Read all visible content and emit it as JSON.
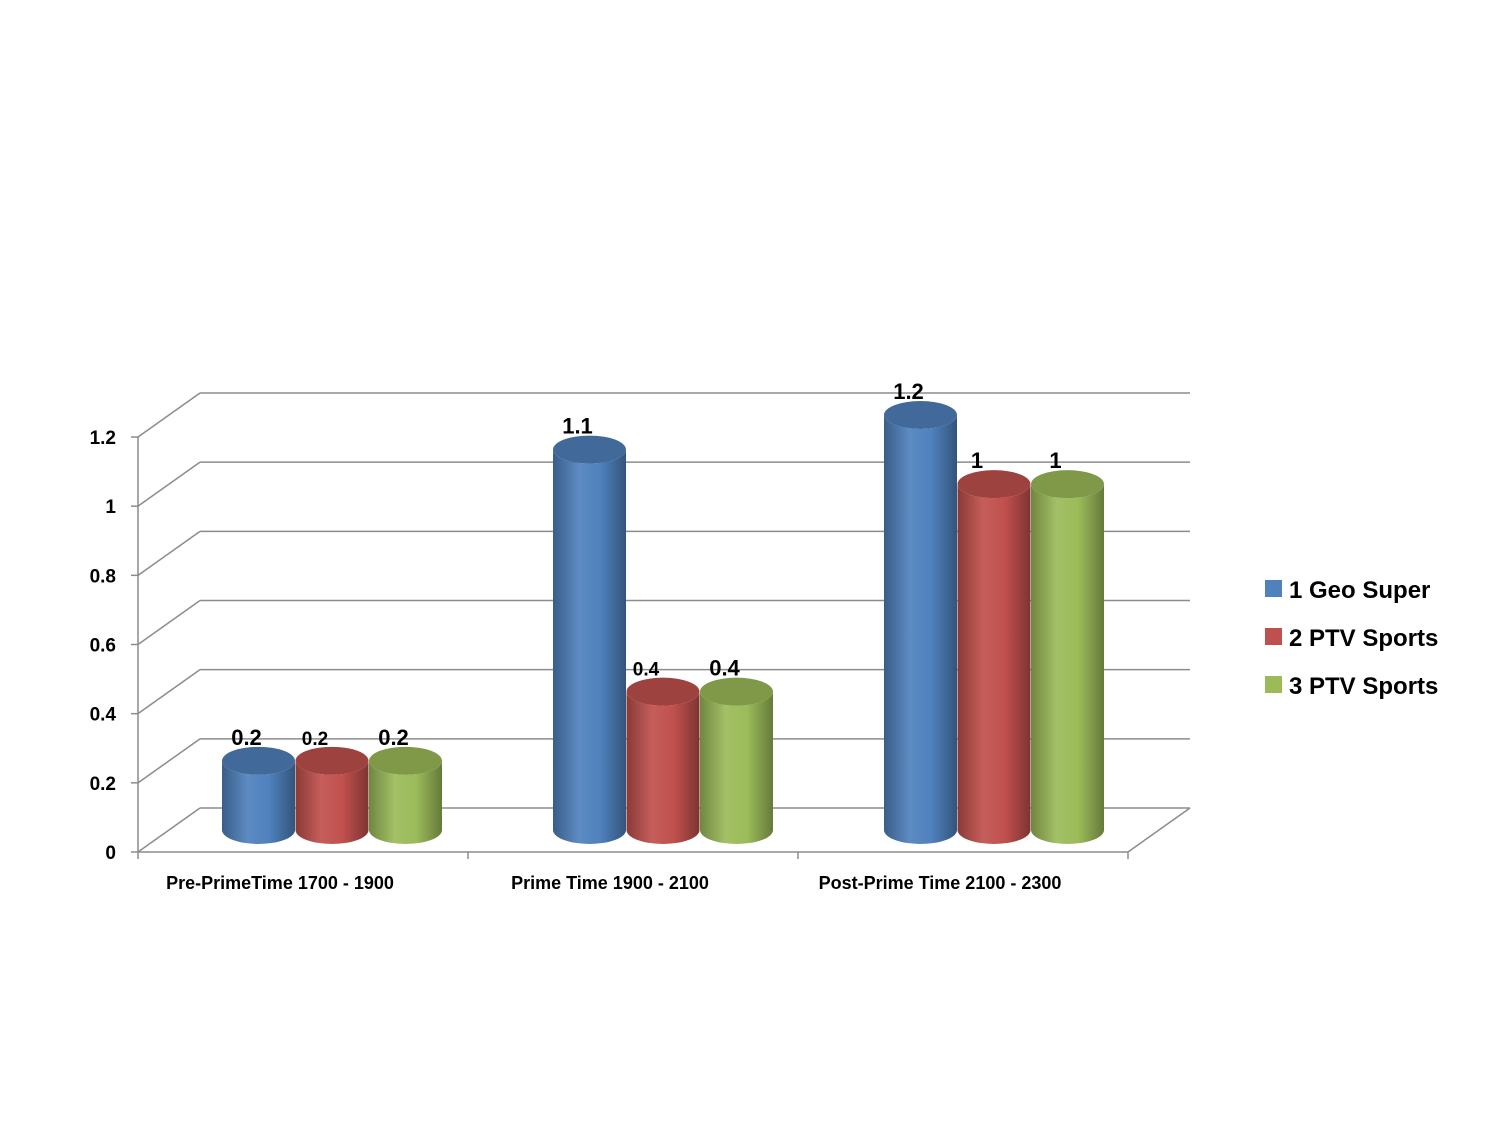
{
  "chart_data": {
    "type": "bar",
    "variant": "3d-cylinder",
    "categories": [
      "Pre-PrimeTime 1700 - 1900",
      "Prime Time 1900 - 2100",
      "Post-Prime Time 2100 - 2300"
    ],
    "series": [
      {
        "name": "1 Geo Super",
        "values": [
          0.2,
          1.1,
          1.2
        ],
        "color": "#4F81BD"
      },
      {
        "name": "2 PTV Sports",
        "values": [
          0.2,
          0.4,
          1
        ],
        "color": "#C0504D"
      },
      {
        "name": "3 PTV Sports",
        "values": [
          0.2,
          0.4,
          1
        ],
        "color": "#9BBB59"
      }
    ],
    "y_ticks": [
      "0",
      "0.2",
      "0.4",
      "0.6",
      "0.8",
      "1",
      "1.2"
    ],
    "data_labels": [
      [
        "0.2",
        "1.1",
        "1.2"
      ],
      [
        "0.2",
        "0.4",
        "1"
      ],
      [
        "0.2",
        "0.4",
        "1"
      ]
    ],
    "ylim": [
      0,
      1.2
    ],
    "grid": true,
    "legend_position": "right",
    "title": "",
    "xlabel": "",
    "ylabel": ""
  }
}
